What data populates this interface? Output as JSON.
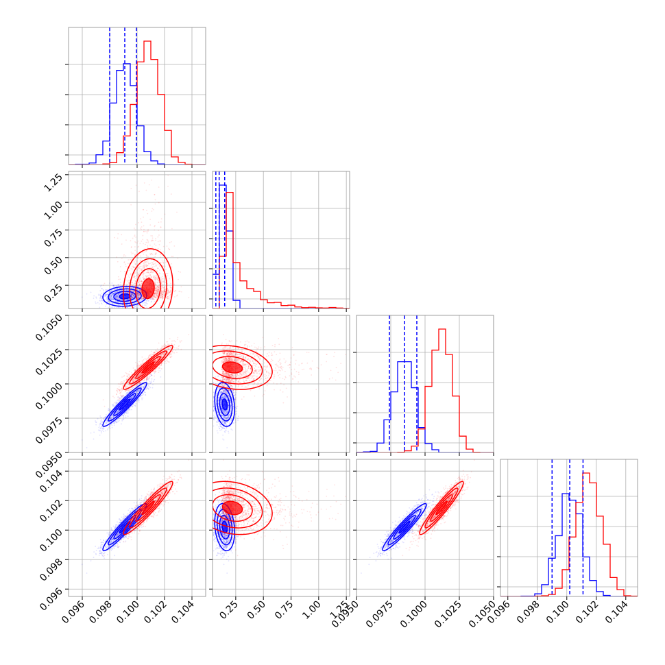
{
  "chart_data": {
    "type": "corner",
    "colors": {
      "A": "#0000ff",
      "B": "#ff0000",
      "grid": "#b0b0b0"
    },
    "params": [
      {
        "range": [
          0.095,
          0.105
        ],
        "ticks": [
          0.096,
          0.098,
          0.1,
          0.102,
          0.104
        ],
        "ticklabels": [
          "0.096",
          "0.098",
          "0.100",
          "0.102",
          "0.104"
        ]
      },
      {
        "range": [
          0.04,
          1.28
        ],
        "ticks": [
          0.25,
          0.5,
          0.75,
          1.0,
          1.25
        ],
        "ticklabels": [
          "0.25",
          "0.50",
          "0.75",
          "1.00",
          "1.25"
        ]
      },
      {
        "range": [
          0.095,
          0.105
        ],
        "ticks": [
          0.095,
          0.0975,
          0.1,
          0.1025,
          0.105
        ],
        "ticklabels": [
          "0.0950",
          "0.0975",
          "0.1000",
          "0.1025",
          "0.1050"
        ]
      },
      {
        "range": [
          0.0955,
          0.1048
        ],
        "ticks": [
          0.096,
          0.098,
          0.1,
          0.102,
          0.104
        ],
        "ticklabels": [
          "0.096",
          "0.098",
          "0.100",
          "0.102",
          "0.104"
        ]
      }
    ],
    "series": [
      {
        "name": "",
        "color": "#0000ff",
        "mean": [
          0.0991,
          0.15,
          0.0985,
          0.1002
        ],
        "std": [
          0.0008,
          0.045,
          0.0008,
          0.0008
        ]
      },
      {
        "name": "",
        "color": "#ff0000",
        "mean": [
          0.1008,
          0.22,
          0.1012,
          0.1015
        ],
        "std": [
          0.0009,
          0.18,
          0.0008,
          0.0009
        ]
      }
    ],
    "quantile_lines": [
      [
        0.098,
        0.0991,
        0.09995
      ],
      [
        0.07,
        0.1,
        0.15
      ],
      [
        0.0974,
        0.0985,
        0.0994
      ],
      [
        0.099,
        0.1002,
        0.1011
      ]
    ],
    "correlations": {
      "0-1": 0.1,
      "0-2": 0.95,
      "0-3": 0.95,
      "1-2": -0.2,
      "1-3": -0.2,
      "2-3": 0.95
    },
    "grid": true,
    "legend": "none"
  }
}
